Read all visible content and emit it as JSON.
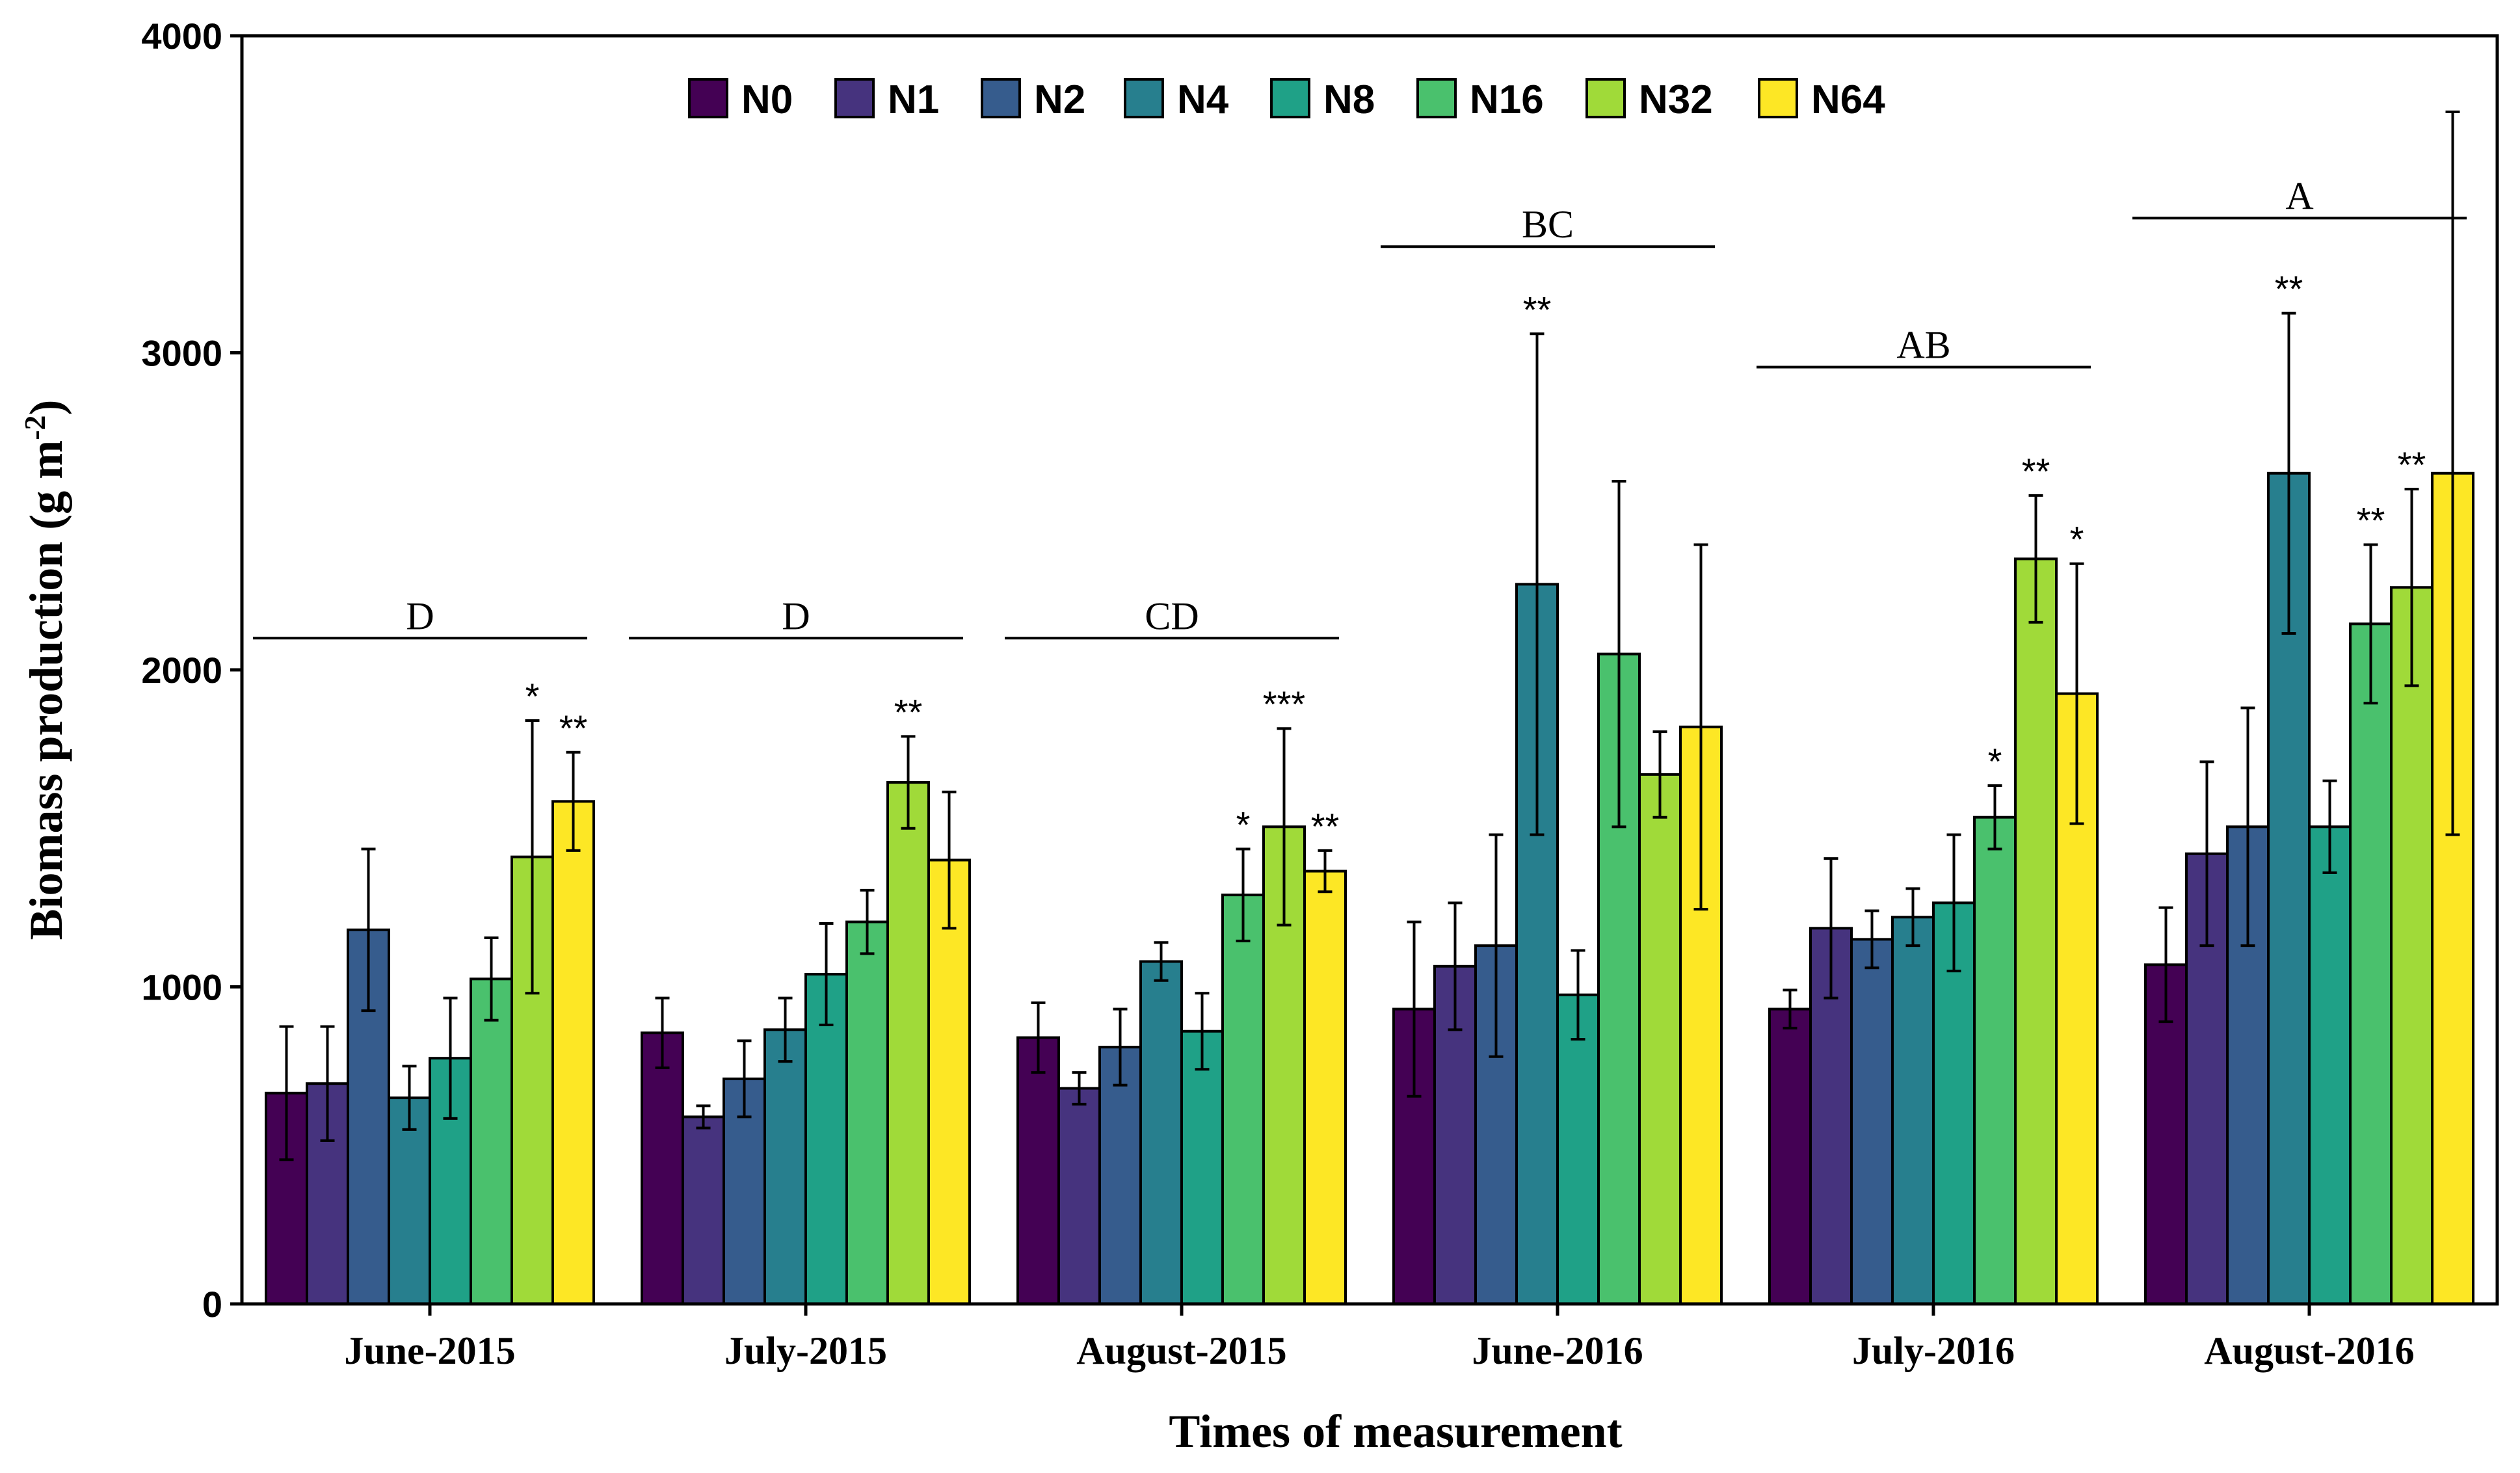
{
  "chart_data": {
    "type": "bar",
    "xlabel": "Times of measurement",
    "ylabel": "Biomass production (g m",
    "ylabel_superscript": "-2",
    "ylabel_close": ")",
    "ylim": [
      0,
      4000
    ],
    "yticks": [
      "0",
      "1000",
      "2000",
      "3000",
      "4000"
    ],
    "categories": [
      "June-2015",
      "July-2015",
      "August-2015",
      "June-2016",
      "July-2016",
      "August-2016"
    ],
    "series": [
      {
        "name": "N0",
        "color": "#440154",
        "values": [
          665,
          855,
          840,
          930,
          930,
          1070
        ],
        "err": [
          210,
          110,
          110,
          275,
          60,
          180
        ]
      },
      {
        "name": "N1",
        "color": "#46337e",
        "values": [
          695,
          590,
          680,
          1065,
          1185,
          1420
        ],
        "err": [
          180,
          35,
          50,
          200,
          220,
          290
        ]
      },
      {
        "name": "N2",
        "color": "#365c8d",
        "values": [
          1180,
          710,
          810,
          1130,
          1150,
          1505
        ],
        "err": [
          255,
          120,
          120,
          350,
          90,
          375
        ]
      },
      {
        "name": "N4",
        "color": "#277f8e",
        "values": [
          650,
          865,
          1080,
          2270,
          1220,
          2620
        ],
        "err": [
          100,
          100,
          60,
          790,
          90,
          505
        ]
      },
      {
        "name": "N8",
        "color": "#1fa187",
        "values": [
          775,
          1040,
          860,
          975,
          1265,
          1505
        ],
        "err": [
          190,
          160,
          120,
          140,
          215,
          145
        ]
      },
      {
        "name": "N16",
        "color": "#4ac16d",
        "values": [
          1025,
          1205,
          1290,
          2050,
          1535,
          2145
        ],
        "err": [
          130,
          100,
          145,
          545,
          100,
          250
        ]
      },
      {
        "name": "N32",
        "color": "#a0da39",
        "values": [
          1410,
          1645,
          1505,
          1670,
          2350,
          2260
        ],
        "err": [
          430,
          145,
          310,
          135,
          200,
          310
        ]
      },
      {
        "name": "N64",
        "color": "#fde725",
        "values": [
          1585,
          1400,
          1365,
          1820,
          1925,
          2620
        ],
        "err": [
          155,
          215,
          65,
          575,
          410,
          1140
        ]
      }
    ],
    "significance": [
      {
        "group": 0,
        "series": 6,
        "label": "*"
      },
      {
        "group": 0,
        "series": 7,
        "label": "**"
      },
      {
        "group": 1,
        "series": 6,
        "label": "**"
      },
      {
        "group": 2,
        "series": 5,
        "label": "*"
      },
      {
        "group": 2,
        "series": 6,
        "label": "***"
      },
      {
        "group": 2,
        "series": 7,
        "label": "**"
      },
      {
        "group": 3,
        "series": 3,
        "label": "**"
      },
      {
        "group": 4,
        "series": 5,
        "label": "*"
      },
      {
        "group": 4,
        "series": 6,
        "label": "**"
      },
      {
        "group": 4,
        "series": 7,
        "label": "*"
      },
      {
        "group": 5,
        "series": 3,
        "label": "**"
      },
      {
        "group": 5,
        "series": 5,
        "label": "**"
      },
      {
        "group": 5,
        "series": 6,
        "label": "**"
      }
    ],
    "group_letters": [
      {
        "group": 0,
        "label": "D",
        "level": 2100
      },
      {
        "group": 1,
        "label": "D",
        "level": 2100
      },
      {
        "group": 2,
        "label": "CD",
        "level": 2100
      },
      {
        "group": 3,
        "label": "BC",
        "level": 3335
      },
      {
        "group": 4,
        "label": "AB",
        "level": 2955
      },
      {
        "group": 5,
        "label": "A",
        "level": 3425
      }
    ],
    "legend_position": "top-center"
  }
}
